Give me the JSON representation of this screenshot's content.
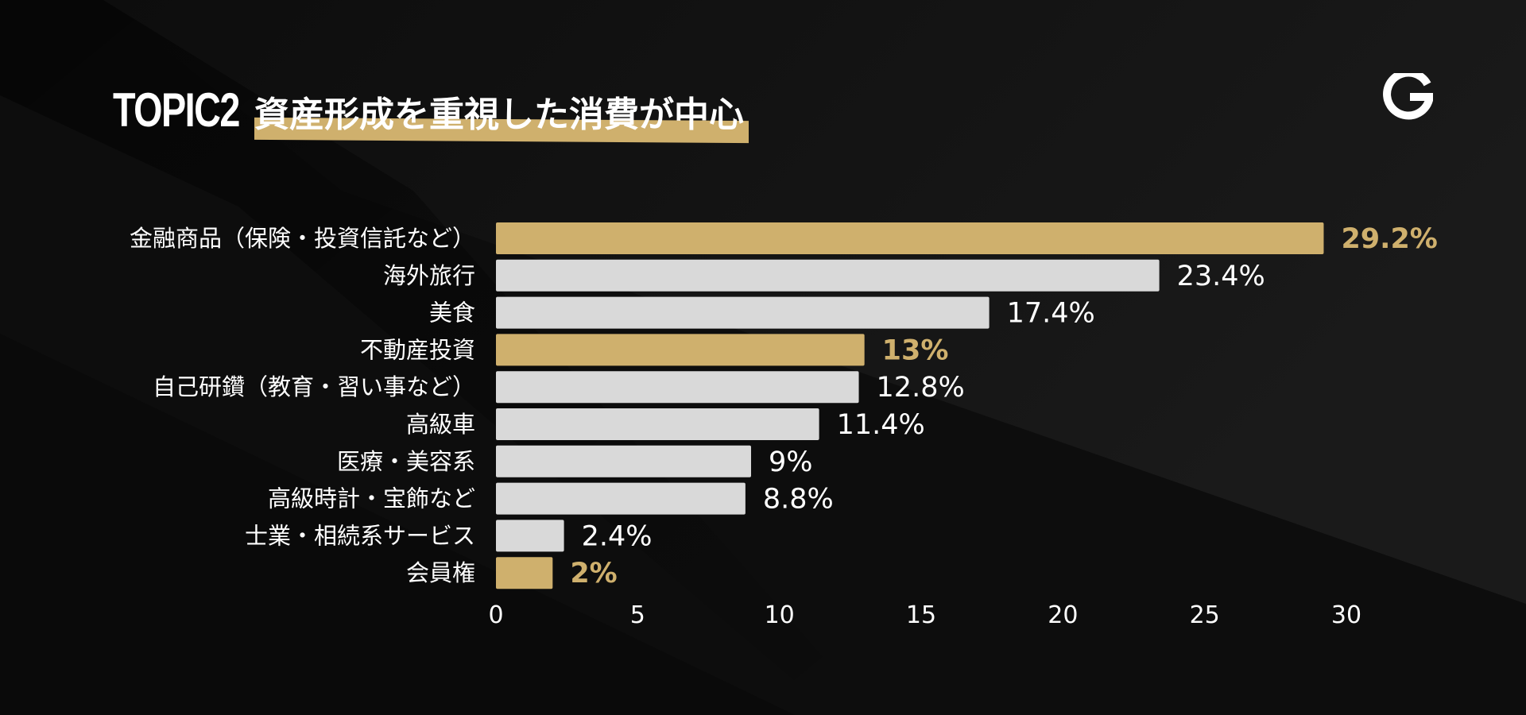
{
  "header": {
    "topic": "TOPIC2",
    "title": "資産形成を重視した消費が中心"
  },
  "logo": {
    "icon": "g-logo-icon",
    "color": "#ffffff"
  },
  "colors": {
    "background": "#0d0d0d",
    "highlight": "#cfb06d",
    "bar": "#d9d9d9",
    "text": "#ffffff"
  },
  "chart_data": {
    "type": "bar",
    "orientation": "horizontal",
    "categories": [
      "金融商品（保険・投資信託など）",
      "海外旅行",
      "美食",
      "不動産投資",
      "自己研鑽（教育・習い事など）",
      "高級車",
      "医療・美容系",
      "高級時計・宝飾など",
      "士業・相続系サービス",
      "会員権"
    ],
    "values": [
      29.2,
      23.4,
      17.4,
      13,
      12.8,
      11.4,
      9,
      8.8,
      2.4,
      2
    ],
    "value_labels": [
      "29.2%",
      "23.4%",
      "17.4%",
      "13%",
      "12.8%",
      "11.4%",
      "9%",
      "8.8%",
      "2.4%",
      "2%"
    ],
    "highlighted": [
      true,
      false,
      false,
      true,
      false,
      false,
      false,
      false,
      false,
      true
    ],
    "xlim": [
      0,
      30
    ],
    "xticks": [
      "0",
      "5",
      "10",
      "15",
      "20",
      "25",
      "30"
    ],
    "grid": false,
    "legend": "none"
  }
}
